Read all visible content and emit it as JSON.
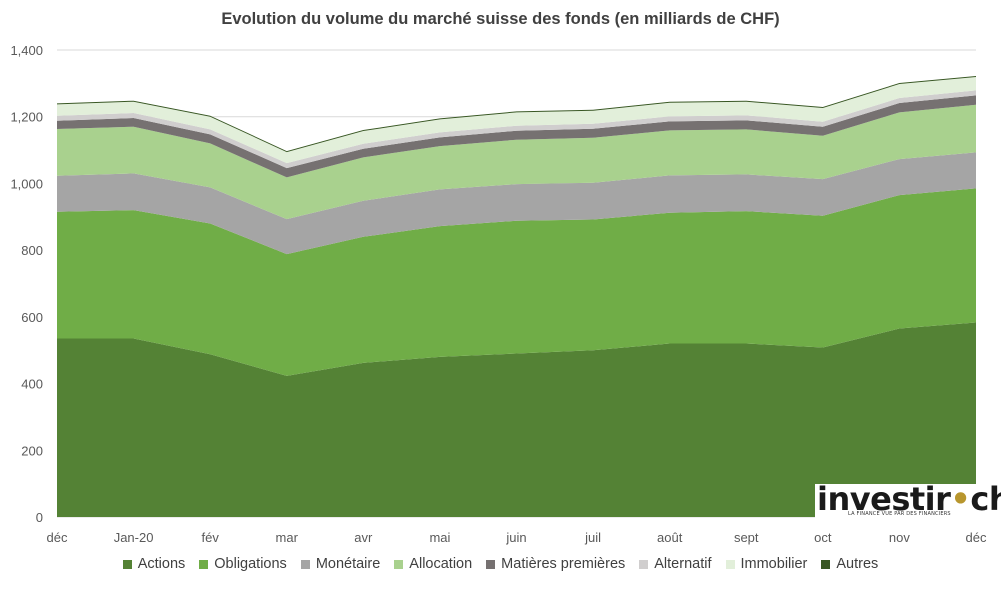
{
  "chart_data": {
    "type": "area",
    "stacked": true,
    "title": "Evolution du volume du marché suisse des fonds (en milliards de CHF)",
    "xlabel": "",
    "ylabel": "",
    "x": [
      "déc",
      "Jan-20",
      "fév",
      "mar",
      "avr",
      "mai",
      "juin",
      "juil",
      "août",
      "sept",
      "oct",
      "nov",
      "déc"
    ],
    "ylim": [
      0,
      1400
    ],
    "yticks": [
      0,
      200,
      400,
      600,
      800,
      1000,
      1200,
      1400
    ],
    "ytick_labels": [
      "0",
      "200",
      "400",
      "600",
      "800",
      "1,000",
      "1,200",
      "1,400"
    ],
    "grid": true,
    "legend_position": "bottom",
    "series": [
      {
        "name": "Actions",
        "color": "#548235",
        "values": [
          535,
          535,
          488,
          423,
          462,
          480,
          490,
          500,
          520,
          520,
          508,
          565,
          583
        ]
      },
      {
        "name": "Obligations",
        "color": "#70ad47",
        "values": [
          380,
          385,
          392,
          365,
          378,
          392,
          398,
          392,
          392,
          397,
          395,
          400,
          402
        ]
      },
      {
        "name": "Monétaire",
        "color": "#a5a5a5",
        "values": [
          108,
          110,
          108,
          105,
          108,
          110,
          110,
          110,
          112,
          110,
          110,
          108,
          108
        ]
      },
      {
        "name": "Allocation",
        "color": "#a9d18e",
        "values": [
          140,
          140,
          132,
          125,
          130,
          130,
          133,
          135,
          135,
          135,
          130,
          140,
          143
        ]
      },
      {
        "name": "Matières premières",
        "color": "#767171",
        "values": [
          25,
          26,
          27,
          28,
          26,
          26,
          27,
          27,
          27,
          27,
          27,
          28,
          28
        ]
      },
      {
        "name": "Alternatif",
        "color": "#d0cece",
        "values": [
          15,
          15,
          15,
          15,
          15,
          15,
          15,
          15,
          15,
          15,
          15,
          15,
          15
        ]
      },
      {
        "name": "Immobilier",
        "color": "#e2efda",
        "values": [
          34,
          34,
          38,
          33,
          38,
          39,
          40,
          39,
          41,
          41,
          41,
          42,
          40
        ]
      },
      {
        "name": "Autres",
        "color": "#385723",
        "values": [
          3,
          3,
          3,
          3,
          3,
          3,
          3,
          3,
          3,
          3,
          3,
          3,
          3
        ]
      }
    ]
  },
  "logo": {
    "word": "investir",
    "dot": "•",
    "suffix": "ch",
    "tagline": "LA FINANCE VUE PAR DES FINANCIERS"
  }
}
